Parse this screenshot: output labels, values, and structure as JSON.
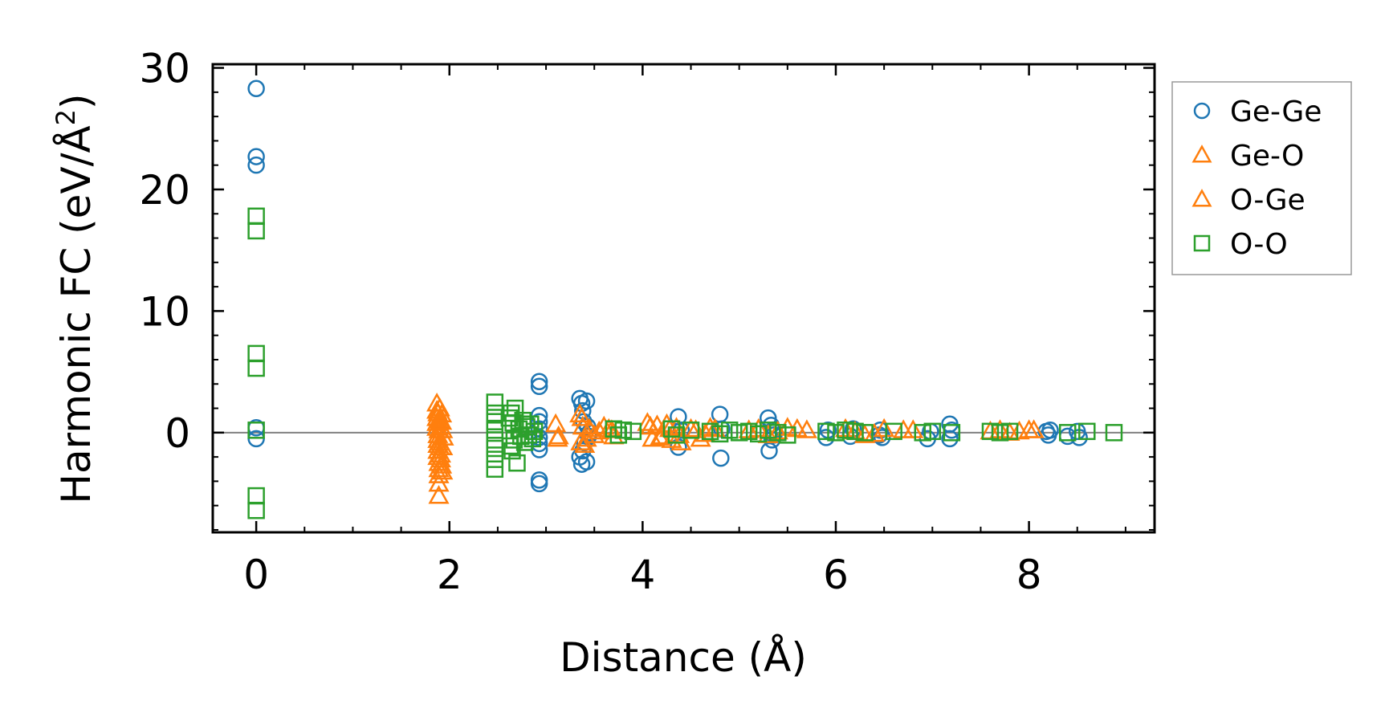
{
  "chart_data": {
    "type": "scatter",
    "title": "",
    "xlabel": "Distance (Å)",
    "ylabel_main": "Harmonic FC (eV/Å",
    "ylabel_sup": "2",
    "ylabel_end": ")",
    "xlim": [
      -0.45,
      9.3
    ],
    "ylim": [
      -8.2,
      30.3
    ],
    "xticks": [
      0,
      2,
      4,
      6,
      8
    ],
    "yticks": [
      0,
      10,
      20,
      30
    ],
    "xtick_labels": [
      "0",
      "2",
      "4",
      "6",
      "8"
    ],
    "ytick_labels": [
      "0",
      "10",
      "20",
      "30"
    ],
    "x_minor_step": 0.5,
    "y_minor_step": 2,
    "zero_line": true,
    "grid": false,
    "legend_position": "outside-right-top",
    "series": [
      {
        "name": "Ge-Ge",
        "marker": "circle",
        "color": "#1f77b4",
        "x": [
          0,
          0,
          0,
          0,
          0,
          2.93,
          2.93,
          2.93,
          2.93,
          2.93,
          2.93,
          2.93,
          2.93,
          2.93,
          2.93,
          3.35,
          3.35,
          3.37,
          3.37,
          3.38,
          3.38,
          3.39,
          3.4,
          3.42,
          3.42,
          3.43,
          3.44,
          3.45,
          4.37,
          4.37,
          4.4,
          4.8,
          4.81,
          4.82,
          5.3,
          5.31,
          5.33,
          5.34,
          5.35,
          5.36,
          5.9,
          5.92,
          6.15,
          6.18,
          6.45,
          6.46,
          6.48,
          6.95,
          6.98,
          7.18,
          7.18,
          7.2,
          8.18,
          8.2,
          8.22,
          8.4,
          8.5,
          8.52
        ],
        "y": [
          28.3,
          22.7,
          22.0,
          0.4,
          -0.5,
          4.2,
          3.8,
          1.4,
          0.9,
          0.3,
          -0.4,
          -0.9,
          -1.4,
          -3.9,
          -4.2,
          2.8,
          -2.0,
          2.4,
          -2.6,
          1.8,
          -1.5,
          0.9,
          -0.8,
          2.6,
          -2.4,
          0.5,
          -0.3,
          0.0,
          1.3,
          -1.2,
          0.2,
          1.5,
          -2.1,
          0.3,
          1.2,
          -1.5,
          0.6,
          -0.6,
          0.2,
          -0.2,
          -0.4,
          0.2,
          -0.3,
          0.3,
          -0.2,
          0.2,
          -0.4,
          -0.5,
          0.1,
          0.7,
          -0.5,
          0.2,
          0.1,
          -0.2,
          0.2,
          -0.3,
          0.1,
          -0.4
        ]
      },
      {
        "name": "Ge-O",
        "marker": "triangle",
        "color": "#ff7f0e",
        "x": [
          1.87,
          1.87,
          1.87,
          1.87,
          1.87,
          1.88,
          1.88,
          1.88,
          1.88,
          1.88,
          1.89,
          1.89,
          1.89,
          1.89,
          1.89,
          1.9,
          1.9,
          1.9,
          1.91,
          1.91,
          1.92,
          1.92,
          1.93,
          1.93,
          1.94,
          3.1,
          3.12,
          3.35,
          3.36,
          3.38,
          3.4,
          3.45,
          3.5,
          3.6,
          3.65,
          3.7,
          4.05,
          4.1,
          4.15,
          4.2,
          4.25,
          4.3,
          4.35,
          4.4,
          4.5,
          4.6,
          4.7,
          5.2,
          5.3,
          5.5,
          5.7,
          6.1,
          6.3,
          6.5,
          6.8,
          7.7,
          7.9,
          8.0
        ],
        "y": [
          2.4,
          1.8,
          1.2,
          0.8,
          0.4,
          -0.2,
          -0.6,
          -1.0,
          -1.5,
          -2.0,
          -2.5,
          -3.0,
          -3.5,
          -4.2,
          -5.2,
          2.0,
          1.0,
          -0.8,
          -1.8,
          0.5,
          -2.7,
          1.5,
          -1.2,
          0.2,
          -0.4,
          0.7,
          -0.5,
          1.5,
          -0.8,
          0.5,
          -1.0,
          0.3,
          -0.2,
          0.5,
          0.3,
          -0.3,
          0.8,
          -0.5,
          0.6,
          -0.3,
          0.7,
          -0.6,
          0.4,
          -0.8,
          0.3,
          -0.5,
          0.4,
          0.3,
          -0.2,
          0.4,
          0.2,
          0.3,
          -0.2,
          0.3,
          0.2,
          0.2,
          0.1,
          0.2
        ]
      },
      {
        "name": "O-Ge",
        "marker": "triangle",
        "color": "#ff7f0e",
        "x": [
          1.88,
          1.89,
          1.9,
          1.91,
          1.92,
          1.93,
          3.13,
          3.37,
          3.42,
          3.55,
          3.68,
          4.08,
          4.18,
          4.28,
          4.38,
          4.55,
          4.65,
          4.75,
          5.1,
          5.4,
          5.6,
          6.2,
          6.4,
          6.7,
          7.6,
          7.8,
          8.05
        ],
        "y": [
          1.6,
          0.2,
          -1.2,
          -2.2,
          0.9,
          -3.2,
          -0.3,
          1.2,
          -0.5,
          0.1,
          0.2,
          0.5,
          -0.4,
          0.3,
          -0.2,
          0.2,
          -0.1,
          0.3,
          0.2,
          0.1,
          0.3,
          0.1,
          -0.1,
          0.2,
          0.1,
          0.0,
          0.2
        ]
      },
      {
        "name": "O-O",
        "marker": "square",
        "color": "#2ca02c",
        "x": [
          0,
          0,
          0,
          0,
          0,
          0,
          0,
          2.47,
          2.47,
          2.47,
          2.47,
          2.47,
          2.47,
          2.47,
          2.47,
          2.62,
          2.63,
          2.64,
          2.65,
          2.66,
          2.67,
          2.68,
          2.7,
          2.72,
          2.74,
          2.76,
          2.78,
          2.8,
          2.82,
          2.84,
          2.86,
          2.88,
          3.7,
          3.75,
          3.8,
          3.9,
          4.3,
          4.35,
          4.5,
          4.7,
          4.8,
          4.9,
          5.0,
          5.1,
          5.2,
          5.3,
          5.4,
          5.5,
          5.9,
          6.0,
          6.1,
          6.2,
          6.3,
          6.6,
          6.9,
          7.0,
          7.2,
          7.6,
          7.7,
          7.8,
          8.4,
          8.6,
          8.88
        ],
        "y": [
          17.8,
          16.6,
          6.5,
          5.3,
          0.2,
          -5.2,
          -6.4,
          2.5,
          1.6,
          0.9,
          0.2,
          -0.6,
          -1.3,
          -2.2,
          -3.0,
          1.2,
          -1.1,
          1.6,
          -1.5,
          0.8,
          -0.6,
          2.0,
          -2.5,
          0.3,
          -0.3,
          1.0,
          -0.8,
          0.5,
          -0.2,
          0.7,
          -0.5,
          0.1,
          0.3,
          -0.2,
          0.2,
          0.1,
          0.3,
          -0.2,
          0.2,
          0.1,
          -0.1,
          0.2,
          0.0,
          0.1,
          -0.1,
          0.2,
          0.0,
          -0.2,
          0.1,
          0.0,
          0.2,
          0.1,
          0.0,
          0.1,
          0.0,
          0.1,
          0.0,
          0.1,
          0.0,
          0.1,
          0.0,
          0.1,
          0.0
        ]
      }
    ]
  }
}
